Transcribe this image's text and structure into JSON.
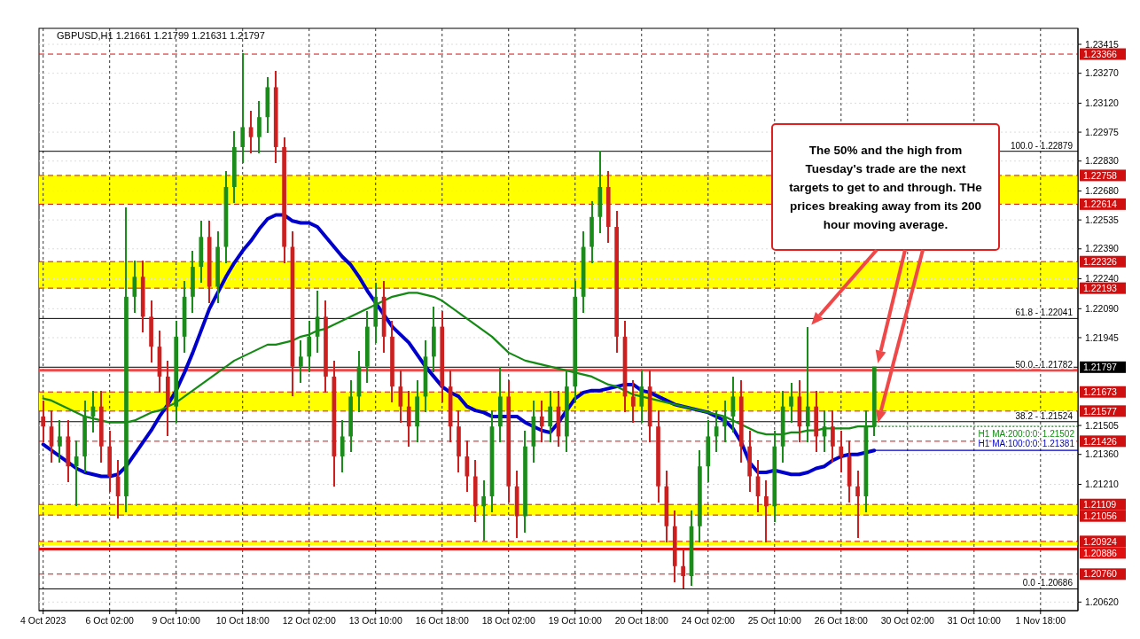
{
  "chart_data": {
    "type": "candlestick",
    "title": "GBPUSD,H1  1.21661 1.21799 1.21631 1.21797",
    "categories": [
      "4 Oct 2023",
      null,
      null,
      null,
      null,
      null,
      null,
      null,
      "6 Oct 02:00",
      null,
      null,
      null,
      null,
      null,
      null,
      null,
      "9 Oct 10:00",
      null,
      null,
      null,
      null,
      null,
      null,
      null,
      "10 Oct 18:00",
      null,
      null,
      null,
      null,
      null,
      null,
      null,
      "12 Oct 02:00",
      null,
      null,
      null,
      null,
      null,
      null,
      null,
      "13 Oct 10:00",
      null,
      null,
      null,
      null,
      null,
      null,
      null,
      "16 Oct 18:00",
      null,
      null,
      null,
      null,
      null,
      null,
      null,
      "18 Oct 02:00",
      null,
      null,
      null,
      null,
      null,
      null,
      null,
      "19 Oct 10:00",
      null,
      null,
      null,
      null,
      null,
      null,
      null,
      "20 Oct 18:00",
      null,
      null,
      null,
      null,
      null,
      null,
      null,
      "24 Oct 02:00",
      null,
      null,
      null,
      null,
      null,
      null,
      null,
      "25 Oct 10:00",
      null,
      null,
      null,
      null,
      null,
      null,
      null,
      "26 Oct 18:00",
      null,
      null,
      null,
      null,
      null,
      null,
      null,
      "30 Oct 02:00",
      null,
      null,
      null,
      null,
      null,
      null,
      null,
      "31 Oct 10:00",
      null,
      null,
      null,
      null,
      null,
      null,
      null,
      "1 Nov 18:00",
      null,
      null,
      null,
      null
    ],
    "ohlc": [
      [
        1.2155,
        1.2163,
        1.2142,
        1.215
      ],
      [
        1.215,
        1.2158,
        1.2132,
        1.214
      ],
      [
        1.214,
        1.2153,
        1.2132,
        1.2145
      ],
      [
        1.2145,
        1.2153,
        1.2122,
        1.213
      ],
      [
        1.213,
        1.2143,
        1.211,
        1.2135
      ],
      [
        1.2135,
        1.2163,
        1.2127,
        1.2155
      ],
      [
        1.2155,
        1.2168,
        1.2147,
        1.216
      ],
      [
        1.216,
        1.2168,
        1.2132,
        1.214
      ],
      [
        1.214,
        1.2148,
        1.2117,
        1.2125
      ],
      [
        1.2125,
        1.2133,
        1.2104,
        1.2115
      ],
      [
        1.2115,
        1.226,
        1.2107,
        1.2215
      ],
      [
        1.2215,
        1.2233,
        1.2207,
        1.2225
      ],
      [
        1.2225,
        1.2233,
        1.2197,
        1.2205
      ],
      [
        1.2205,
        1.2213,
        1.2182,
        1.219
      ],
      [
        1.219,
        1.2198,
        1.2167,
        1.2175
      ],
      [
        1.2175,
        1.2183,
        1.2145,
        1.216
      ],
      [
        1.216,
        1.2203,
        1.2152,
        1.2195
      ],
      [
        1.2195,
        1.2223,
        1.2187,
        1.2215
      ],
      [
        1.2215,
        1.2238,
        1.2207,
        1.223
      ],
      [
        1.223,
        1.2253,
        1.2222,
        1.2245
      ],
      [
        1.2245,
        1.2253,
        1.2212,
        1.222
      ],
      [
        1.222,
        1.2248,
        1.2212,
        1.224
      ],
      [
        1.224,
        1.2278,
        1.2232,
        1.227
      ],
      [
        1.227,
        1.2298,
        1.2262,
        1.229
      ],
      [
        1.229,
        1.2337,
        1.2282,
        1.23
      ],
      [
        1.23,
        1.2308,
        1.2287,
        1.2295
      ],
      [
        1.2295,
        1.2313,
        1.2287,
        1.2305
      ],
      [
        1.2305,
        1.2325,
        1.2297,
        1.232
      ],
      [
        1.232,
        1.2328,
        1.2282,
        1.229
      ],
      [
        1.229,
        1.2295,
        1.2232,
        1.224
      ],
      [
        1.224,
        1.2248,
        1.2165,
        1.218
      ],
      [
        1.218,
        1.2193,
        1.2172,
        1.2185
      ],
      [
        1.2185,
        1.2203,
        1.2177,
        1.2195
      ],
      [
        1.2195,
        1.2218,
        1.2187,
        1.2205
      ],
      [
        1.2205,
        1.2213,
        1.2167,
        1.2175
      ],
      [
        1.2175,
        1.2183,
        1.212,
        1.2135
      ],
      [
        1.2135,
        1.2153,
        1.2127,
        1.2145
      ],
      [
        1.2145,
        1.2173,
        1.2137,
        1.2165
      ],
      [
        1.2165,
        1.2188,
        1.2157,
        1.218
      ],
      [
        1.218,
        1.2208,
        1.2172,
        1.22
      ],
      [
        1.22,
        1.2222,
        1.2192,
        1.2215
      ],
      [
        1.2215,
        1.2223,
        1.2187,
        1.2195
      ],
      [
        1.2195,
        1.2203,
        1.2162,
        1.217
      ],
      [
        1.217,
        1.2178,
        1.2152,
        1.216
      ],
      [
        1.216,
        1.2168,
        1.214,
        1.215
      ],
      [
        1.215,
        1.2173,
        1.2142,
        1.2165
      ],
      [
        1.2165,
        1.2193,
        1.2157,
        1.2185
      ],
      [
        1.2185,
        1.221,
        1.2177,
        1.22
      ],
      [
        1.22,
        1.2208,
        1.2162,
        1.217
      ],
      [
        1.217,
        1.2178,
        1.2142,
        1.215
      ],
      [
        1.215,
        1.2158,
        1.2127,
        1.2135
      ],
      [
        1.2135,
        1.2143,
        1.2117,
        1.2125
      ],
      [
        1.2125,
        1.2133,
        1.2102,
        1.211
      ],
      [
        1.211,
        1.2123,
        1.2093,
        1.2115
      ],
      [
        1.2115,
        1.2158,
        1.2107,
        1.215
      ],
      [
        1.215,
        1.218,
        1.2142,
        1.2165
      ],
      [
        1.2165,
        1.2173,
        1.2112,
        1.212
      ],
      [
        1.212,
        1.2128,
        1.2094,
        1.2105
      ],
      [
        1.2105,
        1.2148,
        1.2097,
        1.214
      ],
      [
        1.214,
        1.2163,
        1.2132,
        1.2155
      ],
      [
        1.2155,
        1.2163,
        1.2142,
        1.215
      ],
      [
        1.215,
        1.2168,
        1.2142,
        1.216
      ],
      [
        1.216,
        1.2168,
        1.214,
        1.2145
      ],
      [
        1.2145,
        1.2178,
        1.2137,
        1.217
      ],
      [
        1.217,
        1.2223,
        1.2162,
        1.2215
      ],
      [
        1.2215,
        1.2248,
        1.2207,
        1.224
      ],
      [
        1.224,
        1.2263,
        1.2232,
        1.2255
      ],
      [
        1.2255,
        1.2288,
        1.2247,
        1.227
      ],
      [
        1.227,
        1.2278,
        1.2242,
        1.225
      ],
      [
        1.225,
        1.2258,
        1.2187,
        1.2195
      ],
      [
        1.2195,
        1.2203,
        1.2157,
        1.2165
      ],
      [
        1.2165,
        1.2173,
        1.2152,
        1.216
      ],
      [
        1.216,
        1.2178,
        1.2152,
        1.217
      ],
      [
        1.217,
        1.2178,
        1.2142,
        1.215
      ],
      [
        1.215,
        1.2158,
        1.2112,
        1.212
      ],
      [
        1.212,
        1.2128,
        1.2092,
        1.21
      ],
      [
        1.21,
        1.2108,
        1.2072,
        1.208
      ],
      [
        1.208,
        1.2088,
        1.2069,
        1.2075
      ],
      [
        1.2075,
        1.2108,
        1.207,
        1.21
      ],
      [
        1.21,
        1.2138,
        1.2092,
        1.213
      ],
      [
        1.213,
        1.2153,
        1.2122,
        1.2145
      ],
      [
        1.2145,
        1.2158,
        1.2137,
        1.215
      ],
      [
        1.215,
        1.2163,
        1.2142,
        1.2155
      ],
      [
        1.2155,
        1.2175,
        1.2147,
        1.2165
      ],
      [
        1.2165,
        1.2173,
        1.2132,
        1.214
      ],
      [
        1.214,
        1.2148,
        1.2117,
        1.2125
      ],
      [
        1.2125,
        1.2133,
        1.2107,
        1.2115
      ],
      [
        1.2115,
        1.2123,
        1.2092,
        1.211
      ],
      [
        1.211,
        1.2148,
        1.2102,
        1.214
      ],
      [
        1.214,
        1.2168,
        1.2132,
        1.216
      ],
      [
        1.216,
        1.2172,
        1.2152,
        1.2165
      ],
      [
        1.2165,
        1.2173,
        1.2142,
        1.215
      ],
      [
        1.215,
        1.22,
        1.2142,
        1.216
      ],
      [
        1.216,
        1.2168,
        1.2137,
        1.2145
      ],
      [
        1.2145,
        1.2158,
        1.2137,
        1.215
      ],
      [
        1.215,
        1.2158,
        1.2132,
        1.214
      ],
      [
        1.214,
        1.2148,
        1.2127,
        1.2135
      ],
      [
        1.2135,
        1.2143,
        1.2112,
        1.212
      ],
      [
        1.212,
        1.2128,
        1.2094,
        1.2115
      ],
      [
        1.2115,
        1.2158,
        1.2107,
        1.215
      ],
      [
        1.215,
        1.218,
        1.2145,
        1.218
      ],
      null,
      null,
      null,
      null,
      null,
      null,
      null,
      null,
      null,
      null,
      null,
      null,
      null,
      null,
      null,
      null,
      null,
      null,
      null,
      null,
      null,
      null,
      null,
      null
    ],
    "series": [
      {
        "type": "line",
        "name": "H1 MA:100:0:0: 1.21381",
        "color": "#0000cc",
        "values": [
          1.2141,
          1.2138,
          1.2135,
          1.2132,
          1.2129,
          1.2127,
          1.2126,
          1.2125,
          1.2125,
          1.2126,
          1.213,
          1.2136,
          1.2142,
          1.2148,
          1.2155,
          1.2161,
          1.2168,
          1.2177,
          1.2187,
          1.2198,
          1.2209,
          1.2217,
          1.2225,
          1.2232,
          1.2238,
          1.2243,
          1.2249,
          1.2254,
          1.2256,
          1.2256,
          1.2253,
          1.2252,
          1.2252,
          1.225,
          1.2245,
          1.224,
          1.2235,
          1.2231,
          1.2225,
          1.2218,
          1.2212,
          1.2206,
          1.22,
          1.2196,
          1.2192,
          1.2186,
          1.218,
          1.2175,
          1.217,
          1.2167,
          1.2165,
          1.216,
          1.2158,
          1.2157,
          1.2155,
          1.2155,
          1.2155,
          1.2155,
          1.2152,
          1.215,
          1.2148,
          1.2147,
          1.2152,
          1.2158,
          1.2164,
          1.2167,
          1.2168,
          1.2168,
          1.2169,
          1.217,
          1.2171,
          1.2171,
          1.2168,
          1.2167,
          1.2165,
          1.2163,
          1.2161,
          1.216,
          1.2159,
          1.2158,
          1.2157,
          1.2155,
          1.2153,
          1.2149,
          1.2142,
          1.2132,
          1.2127,
          1.2127,
          1.2128,
          1.2127,
          1.2126,
          1.2126,
          1.2127,
          1.2129,
          1.213,
          1.2133,
          1.2135,
          1.2136,
          1.2136,
          1.2137,
          1.2138,
          null,
          null,
          null,
          null,
          null,
          null,
          null,
          null,
          null,
          null,
          null,
          null,
          null,
          null,
          null,
          null,
          null,
          null,
          null,
          null,
          null,
          null,
          null,
          null
        ]
      },
      {
        "type": "line",
        "name": "H1 MA:200:0:0: 1.21502",
        "color": "#138a13",
        "values": [
          1.2164,
          1.2163,
          1.2161,
          1.2159,
          1.2157,
          1.2155,
          1.2154,
          1.2153,
          1.2152,
          1.2152,
          1.2152,
          1.2153,
          1.2155,
          1.2157,
          1.2158,
          1.216,
          1.2162,
          1.2165,
          1.2168,
          1.2171,
          1.2174,
          1.2177,
          1.218,
          1.2183,
          1.2185,
          1.2187,
          1.2189,
          1.2191,
          1.2191,
          1.2192,
          1.2193,
          1.2195,
          1.2196,
          1.2198,
          1.2199,
          1.2201,
          1.2203,
          1.2205,
          1.2207,
          1.2209,
          1.2211,
          1.2213,
          1.2215,
          1.2216,
          1.2217,
          1.2217,
          1.2216,
          1.2215,
          1.2213,
          1.221,
          1.2207,
          1.2204,
          1.2201,
          1.2198,
          1.2195,
          1.2191,
          1.2187,
          1.2185,
          1.2183,
          1.2182,
          1.2181,
          1.218,
          1.2179,
          1.2178,
          1.2177,
          1.2176,
          1.2175,
          1.2173,
          1.2171,
          1.217,
          1.2168,
          1.2166,
          1.2165,
          1.2164,
          1.2163,
          1.2162,
          1.2161,
          1.216,
          1.2159,
          1.2158,
          1.2157,
          1.2156,
          1.2155,
          1.2153,
          1.2151,
          1.2149,
          1.2147,
          1.2146,
          1.2146,
          1.2146,
          1.2147,
          1.2147,
          1.2148,
          1.2148,
          1.2149,
          1.2149,
          1.2149,
          1.2149,
          1.215,
          1.215,
          1.215,
          null,
          null,
          null,
          null,
          null,
          null,
          null,
          null,
          null,
          null,
          null,
          null,
          null,
          null,
          null,
          null,
          null,
          null,
          null,
          null,
          null,
          null,
          null,
          null
        ]
      }
    ],
    "ylim": [
      1.20577,
      1.23495
    ],
    "yticks": [
      1.23415,
      {
        "value": 1.2327,
        "label": "1.23270"
      },
      {
        "value": 1.2312,
        "label": "1.23120"
      },
      1.22975,
      {
        "value": 1.2283,
        "label": "1.22830"
      },
      {
        "value": 1.2268,
        "label": "1.22680"
      },
      1.22535,
      {
        "value": 1.2239,
        "label": "1.22390"
      },
      {
        "value": 1.2224,
        "label": "1.22240"
      },
      {
        "value": 1.2209,
        "label": "1.22090"
      },
      1.21945,
      1.21505,
      {
        "value": 1.2136,
        "label": "1.21360"
      },
      {
        "value": 1.2121,
        "label": "1.21210"
      },
      {
        "value": 1.2062,
        "label": "1.20620"
      }
    ],
    "grid": true,
    "bands": [
      {
        "axis": "y",
        "from": 1.22614,
        "to": 1.22758,
        "color": "#ffff00"
      },
      {
        "axis": "y",
        "from": 1.22193,
        "to": 1.22326,
        "color": "#ffff00"
      },
      {
        "axis": "y",
        "from": 1.21577,
        "to": 1.21673,
        "color": "#ffff00"
      },
      {
        "axis": "y",
        "from": 1.21056,
        "to": 1.21109,
        "color": "#ffff00"
      },
      {
        "axis": "y",
        "from": 1.20905,
        "to": 1.20924,
        "color": "#ffff00"
      }
    ],
    "ref_lines": [
      {
        "axis": "y",
        "value": 1.23366,
        "label": "1.23366",
        "color": "#d01010",
        "line_style": "dashed"
      },
      {
        "axis": "y",
        "value": 1.22758,
        "label": "1.22758",
        "color": "#d01010",
        "line_style": "dashed"
      },
      {
        "axis": "y",
        "value": 1.22614,
        "label": "1.22614",
        "color": "#d01010",
        "line_style": "dashed"
      },
      {
        "axis": "y",
        "value": 1.22326,
        "label": "1.22326",
        "color": "#d01010",
        "line_style": "dashed"
      },
      {
        "axis": "y",
        "value": 1.22193,
        "label": "1.22193",
        "color": "#d01010",
        "line_style": "dashed"
      },
      {
        "axis": "y",
        "value": 1.21673,
        "label": "1.21673",
        "color": "#d01010",
        "line_style": "dashed"
      },
      {
        "axis": "y",
        "value": 1.21577,
        "label": "1.21577",
        "color": "#d01010",
        "line_style": "dashed"
      },
      {
        "axis": "y",
        "value": 1.21426,
        "label": "1.21426",
        "color": "#d01010",
        "line_style": "dashed"
      },
      {
        "axis": "y",
        "value": 1.21109,
        "label": "1.21109",
        "color": "#d01010",
        "line_style": "dashed"
      },
      {
        "axis": "y",
        "value": 1.21056,
        "label": "1.21056",
        "color": "#d01010",
        "line_style": "dashed"
      },
      {
        "axis": "y",
        "value": 1.20924,
        "label": "1.20924",
        "color": "#d01010",
        "line_style": "dashed"
      },
      {
        "axis": "y",
        "value": 1.20886,
        "label": "1.20886",
        "color": "#e01010",
        "line_style": "solid"
      },
      {
        "axis": "y",
        "value": 1.2076,
        "label": "1.20760",
        "color": "#d01010",
        "line_style": "dashed"
      },
      {
        "axis": "y",
        "value": 1.21797,
        "label": "1.21797",
        "color": "#000000",
        "line_style": "solid"
      },
      {
        "axis": "y",
        "value": 1.21782,
        "color": "#f04848",
        "line_style": "solid"
      },
      {
        "axis": "y",
        "value": 1.22879,
        "color": "#000000",
        "line_style": "solid"
      },
      {
        "axis": "y",
        "value": 1.22041,
        "color": "#000000",
        "line_style": "solid"
      },
      {
        "axis": "y",
        "value": 1.21524,
        "color": "#000000",
        "line_style": "solid"
      },
      {
        "axis": "y",
        "value": 1.20686,
        "color": "#000000",
        "line_style": "solid"
      }
    ],
    "annotations": [
      "The 50% and the high from Tuesday's trade are the next targets to get to and through. THe prices breaking away from its 200 hour moving average.",
      {
        "text": "100.0 - 1.22879",
        "y": 1.22879
      },
      {
        "text": "61.8 - 1.22041",
        "y": 1.22041
      },
      {
        "text": "50.0 - 1.21782",
        "y": 1.21782
      },
      {
        "text": "38.2 - 1.21524",
        "y": 1.21524
      },
      {
        "text": "0.0 -1.20686",
        "y": 1.20686
      }
    ]
  }
}
